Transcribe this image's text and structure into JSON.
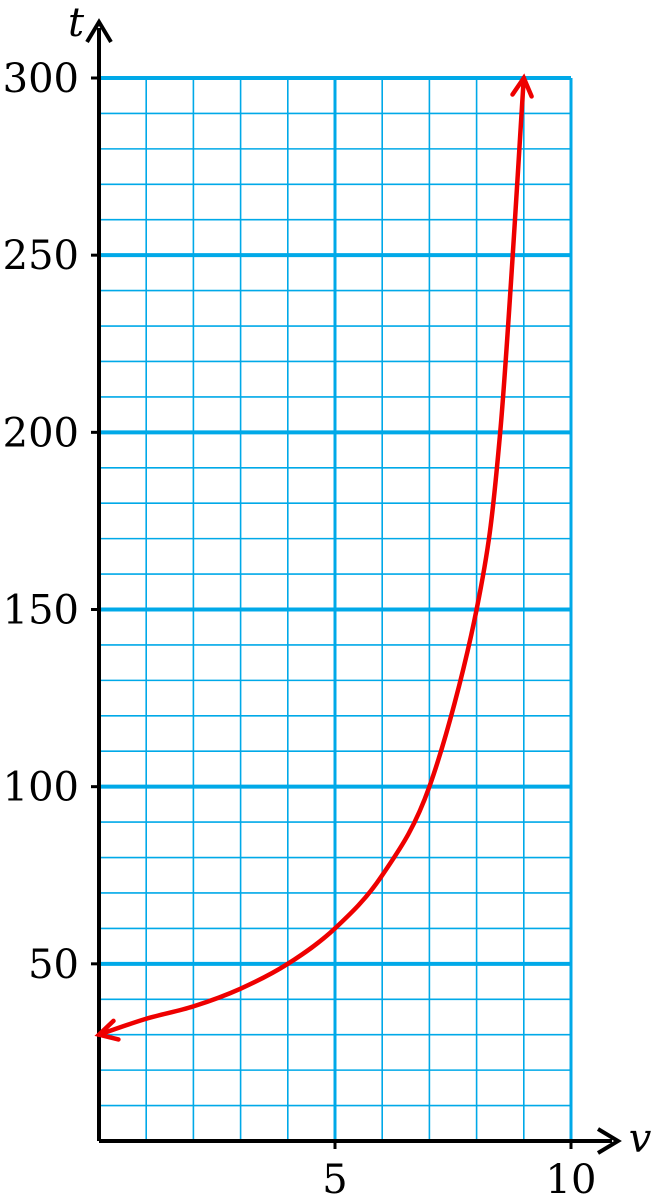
{
  "chart_data": {
    "type": "line",
    "title": "",
    "xlabel": "v",
    "ylabel": "t",
    "xlim": [
      0,
      10
    ],
    "ylim": [
      0,
      300
    ],
    "x_ticks": [
      5,
      10
    ],
    "y_ticks": [
      50,
      100,
      150,
      200,
      250,
      300
    ],
    "minor_x_step": 1,
    "minor_y_step": 10,
    "major_y_step": 50,
    "grid": true,
    "colors": {
      "grid": "#00a9e8",
      "curve": "#ee0000",
      "axis": "#000000"
    },
    "series": [
      {
        "x": [
          0,
          1,
          2,
          3,
          4,
          5,
          6,
          7,
          8,
          8.5,
          9
        ],
        "y": [
          30,
          34.5,
          38,
          43,
          50,
          60,
          75,
          100,
          150,
          200,
          300
        ],
        "arrows": "both"
      }
    ]
  }
}
